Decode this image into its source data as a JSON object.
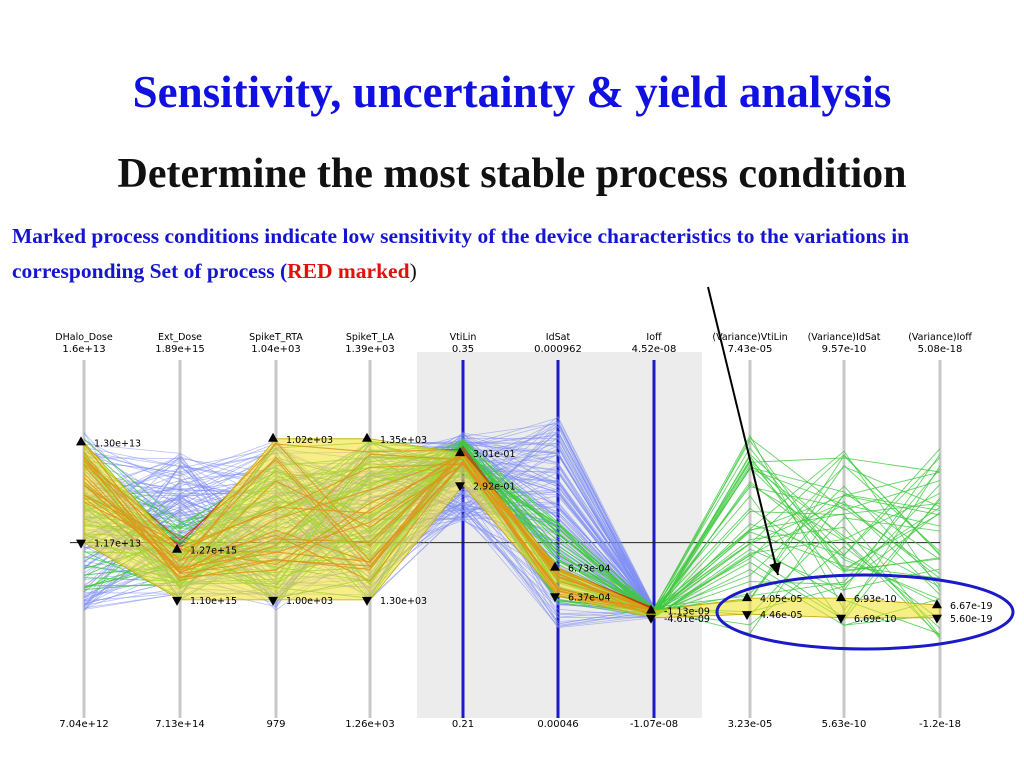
{
  "slide": {
    "title": "Sensitivity, uncertainty & yield analysis",
    "subtitle": "Determine the most stable process condition",
    "desc_text": "Marked process conditions indicate low sensitivity of the device characteristics to the variations in corresponding Set of process (",
    "desc_red": "RED marked",
    "desc_close": ")"
  },
  "colors": {
    "title": "#1010e0",
    "desc": "#1515d0",
    "accent_red": "#e01010",
    "lines_blue": "#7b8cf4",
    "lines_green": "#3fc83f",
    "lines_red": "#c83a10",
    "band_yellow": "#f0e020",
    "highlight_axis": "#1a1ac8",
    "gray_axis": "#c8c8c8",
    "selection_bg": "#ececec"
  },
  "chart_data": {
    "type": "parallel_coordinates",
    "axes": [
      {
        "name": "DHalo_Dose",
        "max": "1.6e+13",
        "min": "7.04e+12",
        "highlighted": false
      },
      {
        "name": "Ext_Dose",
        "max": "1.89e+15",
        "min": "7.13e+14",
        "highlighted": false
      },
      {
        "name": "SpikeT_RTA",
        "max": "1.04e+03",
        "min": "979",
        "highlighted": false
      },
      {
        "name": "SpikeT_LA",
        "max": "1.39e+03",
        "min": "1.26e+03",
        "highlighted": false
      },
      {
        "name": "VtiLin",
        "max": "0.35",
        "min": "0.21",
        "highlighted": true
      },
      {
        "name": "IdSat",
        "max": "0.000962",
        "min": "0.00046",
        "highlighted": true
      },
      {
        "name": "Ioff",
        "max": "4.52e-08",
        "min": "-1.07e-08",
        "highlighted": true
      },
      {
        "name": "(Variance)VtiLin",
        "max": "7.43e-05",
        "min": "3.23e-05",
        "highlighted": false
      },
      {
        "name": "(Variance)IdSat",
        "max": "9.57e-10",
        "min": "5.63e-10",
        "highlighted": false
      },
      {
        "name": "(Variance)Ioff",
        "max": "5.08e-18",
        "min": "-1.2e-18",
        "highlighted": false
      }
    ],
    "selected_range": {
      "from_axis": "VtiLin",
      "to_axis": "Ioff"
    },
    "markers": [
      {
        "axis": 0,
        "label": "1.30e+13",
        "dir": "up",
        "y": 0.77
      },
      {
        "axis": 0,
        "label": "1.17e+13",
        "dir": "down",
        "y": 0.49
      },
      {
        "axis": 1,
        "label": "1.27e+15",
        "dir": "up",
        "y": 0.47
      },
      {
        "axis": 1,
        "label": "1.10e+15",
        "dir": "down",
        "y": 0.33
      },
      {
        "axis": 2,
        "label": "1.02e+03",
        "dir": "up",
        "y": 0.78
      },
      {
        "axis": 2,
        "label": "1.00e+03",
        "dir": "down",
        "y": 0.33
      },
      {
        "axis": 3,
        "label": "1.35e+03",
        "dir": "up",
        "y": 0.78
      },
      {
        "axis": 3,
        "label": "1.30e+03",
        "dir": "down",
        "y": 0.33
      },
      {
        "axis": 4,
        "label": "3.01e-01",
        "dir": "up",
        "y": 0.74
      },
      {
        "axis": 4,
        "label": "2.92e-01",
        "dir": "down",
        "y": 0.65
      },
      {
        "axis": 5,
        "label": "6.73e-04",
        "dir": "up",
        "y": 0.42
      },
      {
        "axis": 5,
        "label": "6.37e-04",
        "dir": "down",
        "y": 0.34
      },
      {
        "axis": 6,
        "label": "-1.13e-09",
        "dir": "up",
        "y": 0.3
      },
      {
        "axis": 6,
        "label": "-4.61e-09",
        "dir": "down",
        "y": 0.28
      },
      {
        "axis": 7,
        "label": "4.05e-05",
        "dir": "up",
        "y": 0.335
      },
      {
        "axis": 7,
        "label": "4.46e-05",
        "dir": "down",
        "y": 0.29
      },
      {
        "axis": 8,
        "label": "6.93e-10",
        "dir": "up",
        "y": 0.335
      },
      {
        "axis": 8,
        "label": "6.69e-10",
        "dir": "down",
        "y": 0.28
      },
      {
        "axis": 9,
        "label": "6.67e-19",
        "dir": "up",
        "y": 0.315
      },
      {
        "axis": 9,
        "label": "5.60e-19",
        "dir": "down",
        "y": 0.28
      }
    ],
    "center_line_y": 0.49
  }
}
